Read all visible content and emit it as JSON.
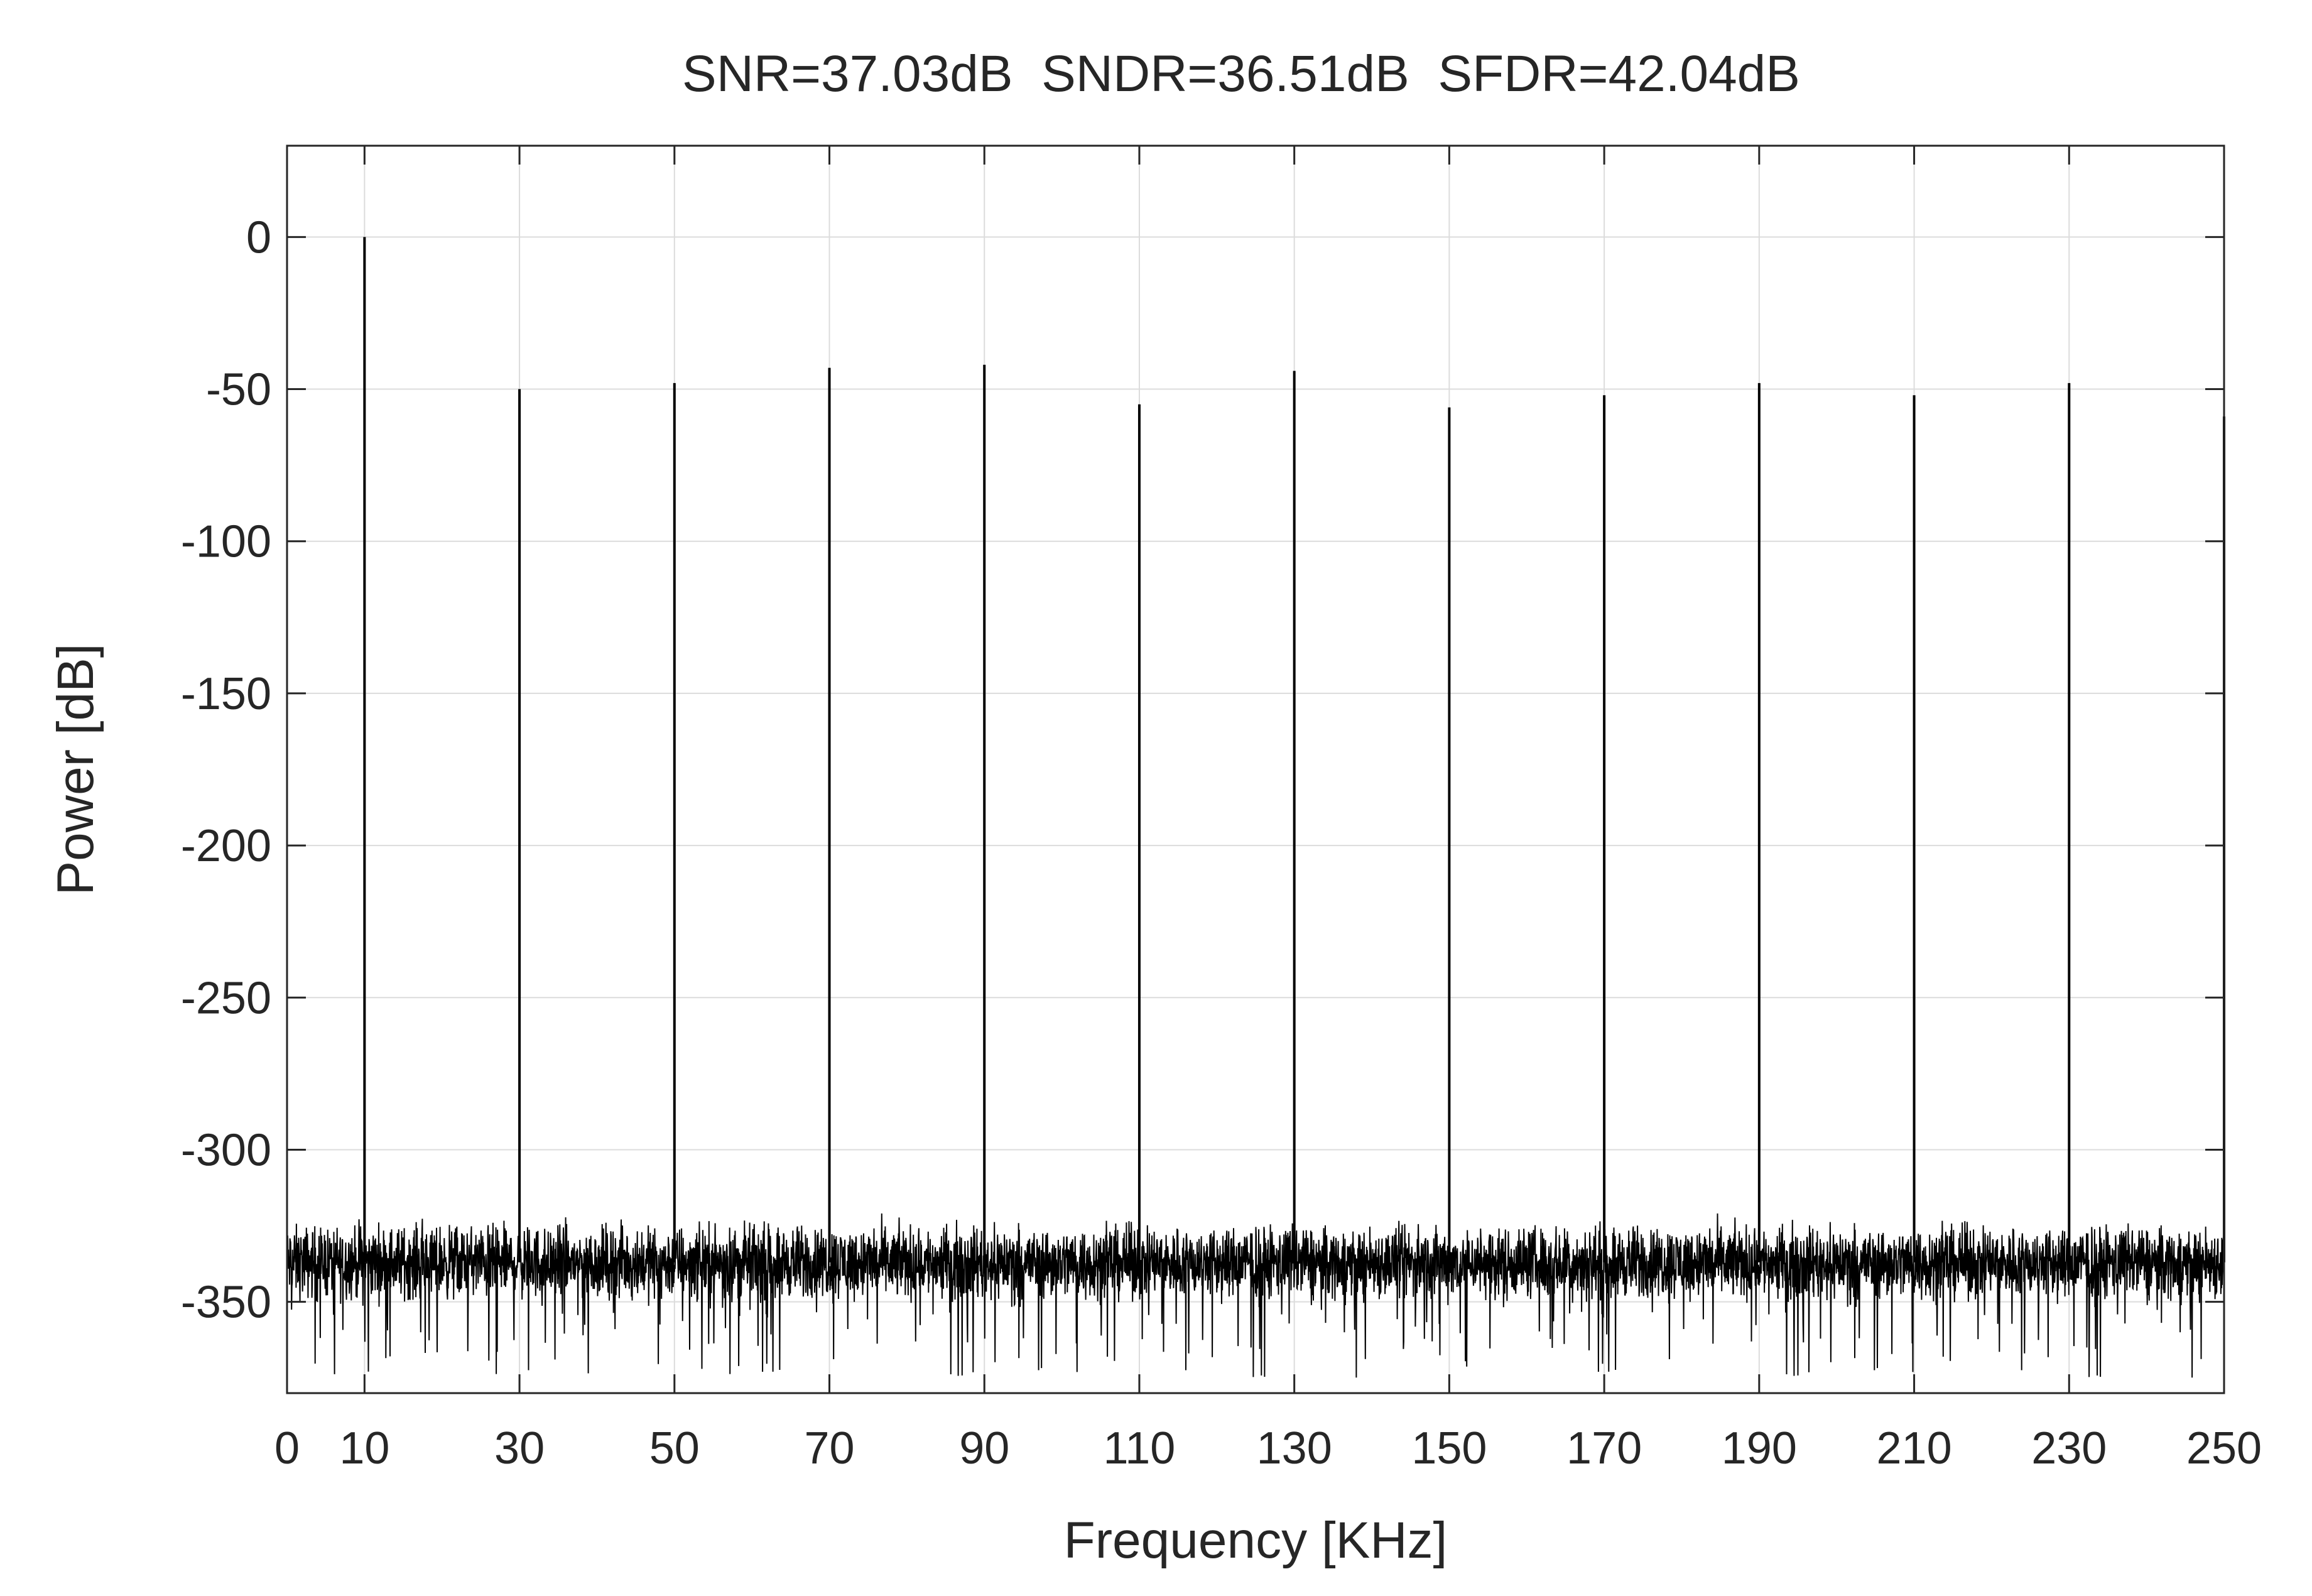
{
  "chart_data": {
    "type": "line",
    "title": "SNR=37.03dB  SNDR=36.51dB  SFDR=42.04dB",
    "xlabel": "Frequency [KHz]",
    "ylabel": "Power [dB]",
    "xlim": [
      0,
      250
    ],
    "ylim": [
      -380,
      30
    ],
    "xticks": [
      0,
      10,
      30,
      50,
      70,
      90,
      110,
      130,
      150,
      170,
      190,
      210,
      230,
      250
    ],
    "xtick_labels": [
      "0",
      "10",
      "30",
      "50",
      "70",
      "90",
      "110",
      "130",
      "150",
      "170",
      "190",
      "210",
      "230",
      "250"
    ],
    "yticks": [
      0,
      -50,
      -100,
      -150,
      -200,
      -250,
      -300,
      -350
    ],
    "ytick_labels": [
      "0",
      "-50",
      "-100",
      "-150",
      "-200",
      "-250",
      "-300",
      "-350"
    ],
    "grid": true,
    "line_color": "#000000",
    "noise_floor": {
      "mean": -337,
      "min": -375,
      "max": -320
    },
    "peaks": [
      {
        "x": 10,
        "y": 0
      },
      {
        "x": 30,
        "y": -50
      },
      {
        "x": 50,
        "y": -48
      },
      {
        "x": 70,
        "y": -43
      },
      {
        "x": 90,
        "y": -42
      },
      {
        "x": 110,
        "y": -55
      },
      {
        "x": 130,
        "y": -44
      },
      {
        "x": 150,
        "y": -56
      },
      {
        "x": 170,
        "y": -52
      },
      {
        "x": 190,
        "y": -48
      },
      {
        "x": 210,
        "y": -52
      },
      {
        "x": 230,
        "y": -48
      },
      {
        "x": 250,
        "y": -59
      }
    ]
  }
}
